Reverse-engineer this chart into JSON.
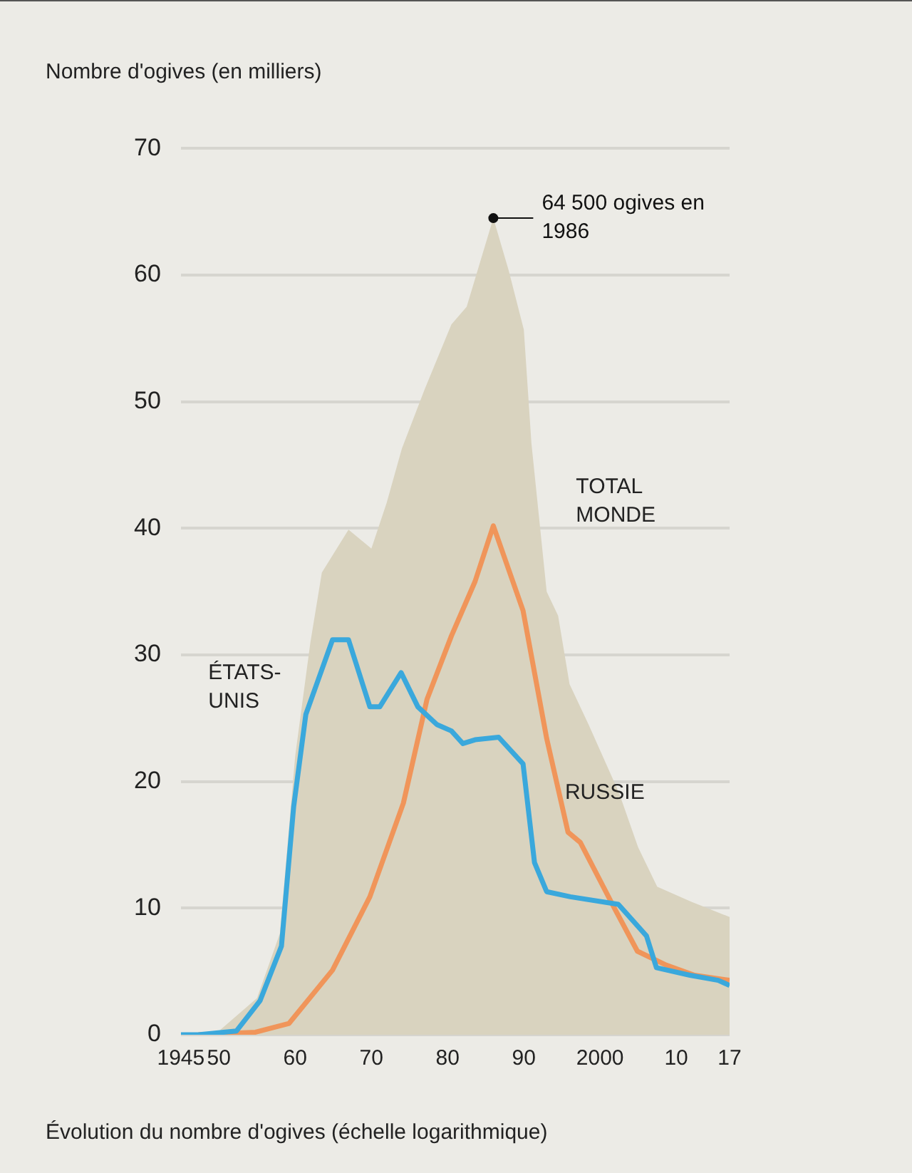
{
  "chart_data": {
    "type": "line",
    "ylabel": "Nombre d'ogives (en milliers)",
    "xlim": [
      1945,
      2017
    ],
    "xticks": [
      {
        "value": 1945,
        "label": "1945"
      },
      {
        "value": 1950,
        "label": "50"
      },
      {
        "value": 1960,
        "label": "60"
      },
      {
        "value": 1970,
        "label": "70"
      },
      {
        "value": 1980,
        "label": "80"
      },
      {
        "value": 1990,
        "label": "90"
      },
      {
        "value": 2000,
        "label": "2000"
      },
      {
        "value": 2010,
        "label": "10"
      },
      {
        "value": 2017,
        "label": "17"
      }
    ],
    "ylim": [
      0,
      70
    ],
    "yticks": [
      0,
      10,
      20,
      30,
      40,
      50,
      60,
      70
    ],
    "grid": "y",
    "legend": false,
    "marker": "none",
    "series": [
      {
        "name": "TOTAL MONDE",
        "type": "area",
        "color": "#d9d3bf",
        "x": [
          1945,
          1950,
          1955,
          1958,
          1960,
          1962,
          1963.5,
          1967,
          1970,
          1972,
          1974,
          1977,
          1980.5,
          1982.5,
          1986,
          1988,
          1990,
          1991,
          1993,
          1994.5,
          1996,
          1998.5,
          2002.5,
          2005,
          2007.5,
          2012,
          2017
        ],
        "values": [
          0,
          0.3,
          2.9,
          8,
          22,
          31,
          36.5,
          39.9,
          38.4,
          42,
          46.3,
          51,
          56.1,
          57.5,
          64.5,
          60.4,
          55.7,
          46.7,
          35,
          33.1,
          27.7,
          24.5,
          19.1,
          14.8,
          11.7,
          10.5,
          9.3
        ]
      },
      {
        "name": "ÉTATS-UNIS",
        "type": "line",
        "color": "#3aa8dc",
        "x": [
          1945,
          1947.3,
          1952.3,
          1955.4,
          1958.2,
          1959.8,
          1961.4,
          1963,
          1964.9,
          1967,
          1969.8,
          1971.1,
          1973.9,
          1976.1,
          1978.6,
          1980.5,
          1982,
          1983.6,
          1986.7,
          1989.9,
          1991.4,
          1993,
          1996.1,
          2002.4,
          2006.1,
          2007.4,
          2011.8,
          2015.5,
          2017
        ],
        "values": [
          0,
          0,
          0.3,
          2.7,
          7,
          18,
          25.3,
          28,
          31.2,
          31.2,
          25.9,
          25.9,
          28.6,
          25.9,
          24.5,
          24,
          23,
          23.3,
          23.5,
          21.4,
          13.6,
          11.3,
          10.9,
          10.3,
          7.8,
          5.3,
          4.7,
          4.3,
          3.9
        ]
      },
      {
        "name": "RUSSIE",
        "type": "line",
        "color": "#f0955a",
        "x": [
          1947.3,
          1954.8,
          1959.2,
          1964.9,
          1969.8,
          1974.2,
          1977.3,
          1980.5,
          1983.6,
          1986,
          1989.9,
          1993,
          1995.8,
          1997.4,
          2001.8,
          2004.9,
          2008.7,
          2012.4,
          2017
        ],
        "values": [
          0,
          0.2,
          0.9,
          5.1,
          10.9,
          18.3,
          26.5,
          31.5,
          35.8,
          40.2,
          33.5,
          23.4,
          16,
          15.2,
          10.1,
          6.6,
          5.5,
          4.7,
          4.3
        ]
      }
    ],
    "annotations": [
      {
        "text": "64 500 ogives en 1986",
        "x": 1986,
        "y": 64.5
      },
      "Évolution du nombre d'ogives (échelle logarithmique)"
    ]
  }
}
